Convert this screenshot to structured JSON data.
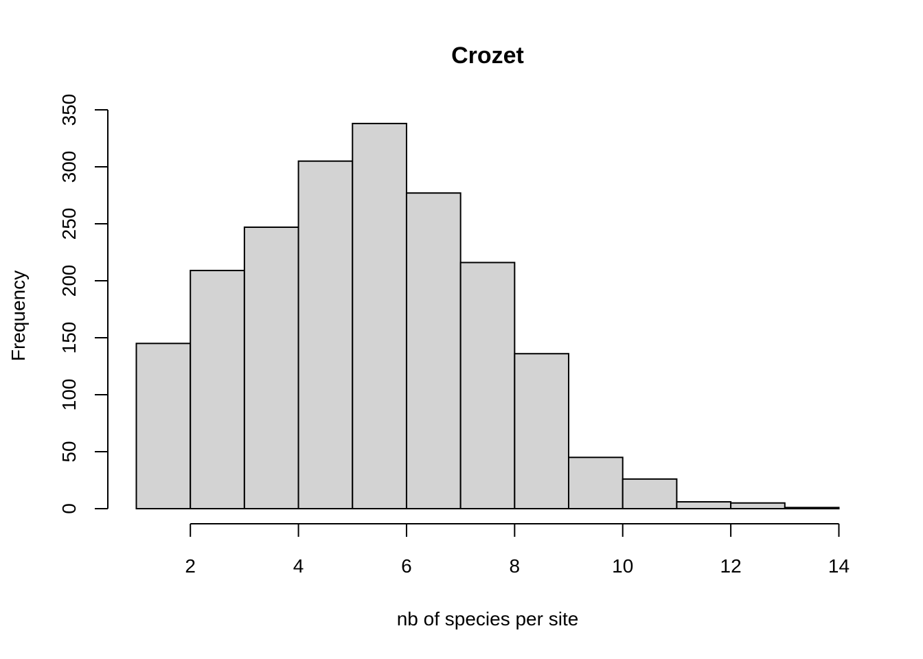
{
  "chart_data": {
    "type": "histogram",
    "title": "Crozet",
    "xlabel": "nb of species per site",
    "ylabel": "Frequency",
    "bins": [
      {
        "from": 1,
        "to": 2,
        "count": 145
      },
      {
        "from": 2,
        "to": 3,
        "count": 209
      },
      {
        "from": 3,
        "to": 4,
        "count": 247
      },
      {
        "from": 4,
        "to": 5,
        "count": 305
      },
      {
        "from": 5,
        "to": 6,
        "count": 338
      },
      {
        "from": 6,
        "to": 7,
        "count": 277
      },
      {
        "from": 7,
        "to": 8,
        "count": 216
      },
      {
        "from": 8,
        "to": 9,
        "count": 136
      },
      {
        "from": 9,
        "to": 10,
        "count": 45
      },
      {
        "from": 10,
        "to": 11,
        "count": 26
      },
      {
        "from": 11,
        "to": 12,
        "count": 6
      },
      {
        "from": 12,
        "to": 13,
        "count": 5
      },
      {
        "from": 13,
        "to": 14,
        "count": 1
      }
    ],
    "xlim": [
      1,
      14
    ],
    "ylim": [
      0,
      350
    ],
    "xticks": [
      2,
      4,
      6,
      8,
      10,
      12,
      14
    ],
    "yticks": [
      0,
      50,
      100,
      150,
      200,
      250,
      300,
      350
    ],
    "xtick_labels": [
      "2",
      "4",
      "6",
      "8",
      "10",
      "12",
      "14"
    ],
    "ytick_labels": [
      "0",
      "50",
      "100",
      "150",
      "200",
      "250",
      "300",
      "350"
    ],
    "grid": false,
    "legend": "none",
    "colors": {
      "bar_fill": "#d3d3d3",
      "bar_stroke": "#000000"
    }
  }
}
